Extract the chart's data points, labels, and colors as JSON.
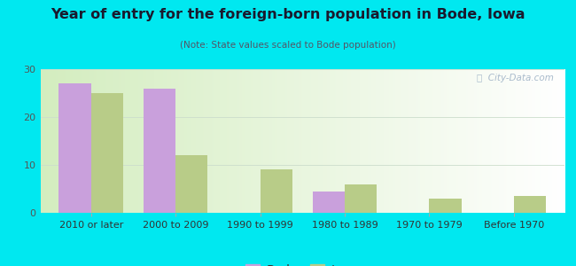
{
  "title": "Year of entry for the foreign-born population in Bode, Iowa",
  "subtitle": "(Note: State values scaled to Bode population)",
  "categories": [
    "2010 or later",
    "2000 to 2009",
    "1990 to 1999",
    "1980 to 1989",
    "1970 to 1979",
    "Before 1970"
  ],
  "bode_values": [
    27,
    26,
    0,
    4.5,
    0,
    0
  ],
  "iowa_values": [
    25,
    12,
    9,
    6,
    3,
    3.5
  ],
  "bode_color": "#c9a0dc",
  "iowa_color": "#b8cc88",
  "background_color": "#00e8f0",
  "ylim": [
    0,
    30
  ],
  "yticks": [
    0,
    10,
    20,
    30
  ],
  "bar_width": 0.38,
  "legend_labels": [
    "Bode",
    "Iowa"
  ],
  "watermark": "ⓘ  City-Data.com"
}
